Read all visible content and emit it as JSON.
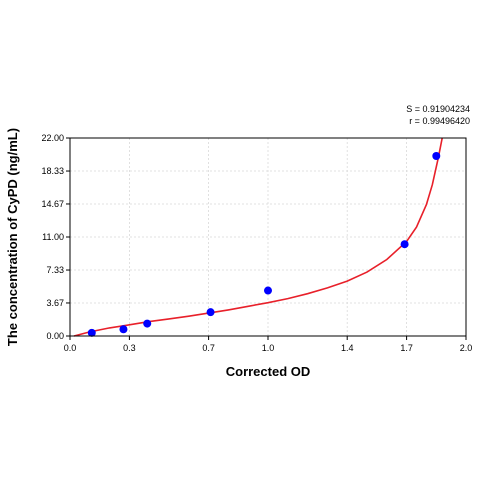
{
  "chart_data": {
    "type": "scatter",
    "xlabel": "Corrected OD",
    "ylabel": "The concentration of CyPD (ng/mL)",
    "xlim": [
      0.0,
      2.0
    ],
    "ylim": [
      0.0,
      22.0
    ],
    "x_ticks": [
      0.0,
      0.3,
      0.7,
      1.0,
      1.4,
      1.7,
      2.0
    ],
    "x_tick_labels": [
      "0.0",
      "0.3",
      "0.7",
      "1.0",
      "1.4",
      "1.7",
      "2.0"
    ],
    "y_ticks": [
      0.0,
      3.67,
      7.33,
      11.0,
      14.67,
      18.33,
      22.0
    ],
    "y_tick_labels": [
      "0.00",
      "3.67",
      "7.33",
      "11.00",
      "14.67",
      "18.33",
      "22.00"
    ],
    "grid": true,
    "stats": [
      "S = 0.91904234",
      "r = 0.99496420"
    ],
    "series": [
      {
        "points": [
          {
            "x": 0.11,
            "y": 0.35
          },
          {
            "x": 0.27,
            "y": 0.75
          },
          {
            "x": 0.39,
            "y": 1.38
          },
          {
            "x": 0.71,
            "y": 2.65
          },
          {
            "x": 1.0,
            "y": 5.05
          },
          {
            "x": 1.69,
            "y": 10.2
          },
          {
            "x": 1.85,
            "y": 20.0
          }
        ],
        "color": "#0000ff"
      }
    ],
    "fit_curve": {
      "color": "#e8202a",
      "points": [
        {
          "x": 0.02,
          "y": 0.0
        },
        {
          "x": 0.1,
          "y": 0.45
        },
        {
          "x": 0.2,
          "y": 0.9
        },
        {
          "x": 0.3,
          "y": 1.25
        },
        {
          "x": 0.4,
          "y": 1.6
        },
        {
          "x": 0.5,
          "y": 1.9
        },
        {
          "x": 0.6,
          "y": 2.2
        },
        {
          "x": 0.7,
          "y": 2.55
        },
        {
          "x": 0.8,
          "y": 2.9
        },
        {
          "x": 0.9,
          "y": 3.3
        },
        {
          "x": 1.0,
          "y": 3.7
        },
        {
          "x": 1.1,
          "y": 4.15
        },
        {
          "x": 1.2,
          "y": 4.7
        },
        {
          "x": 1.3,
          "y": 5.35
        },
        {
          "x": 1.4,
          "y": 6.1
        },
        {
          "x": 1.5,
          "y": 7.1
        },
        {
          "x": 1.6,
          "y": 8.5
        },
        {
          "x": 1.7,
          "y": 10.5
        },
        {
          "x": 1.75,
          "y": 12.1
        },
        {
          "x": 1.8,
          "y": 14.6
        },
        {
          "x": 1.83,
          "y": 16.8
        },
        {
          "x": 1.86,
          "y": 19.8
        },
        {
          "x": 1.88,
          "y": 22.0
        }
      ]
    }
  }
}
